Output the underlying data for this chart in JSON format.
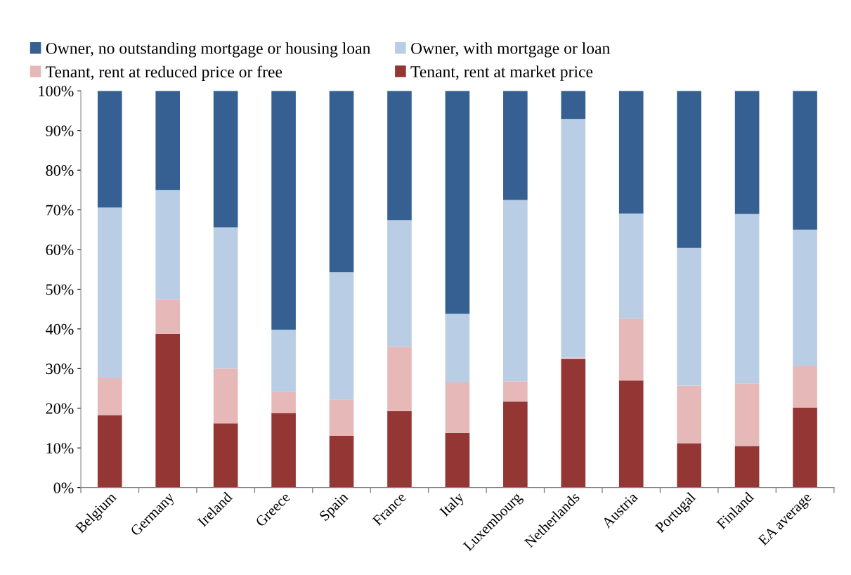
{
  "chart_data": {
    "type": "bar",
    "stacked": true,
    "categories": [
      "Belgium",
      "Germany",
      "Ireland",
      "Greece",
      "Spain",
      "France",
      "Italy",
      "Luxembourg",
      "Netherlands",
      "Austria",
      "Portugal",
      "Finland",
      "EA average"
    ],
    "series": [
      {
        "name": "Tenant, rent at market price",
        "color": "#943634",
        "values": [
          18.3,
          38.8,
          16.2,
          18.8,
          13.1,
          19.3,
          13.8,
          21.7,
          32.4,
          27.0,
          11.2,
          10.5,
          20.2
        ]
      },
      {
        "name": "Tenant, rent at reduced price or free",
        "color": "#e6b8b7",
        "values": [
          9.3,
          8.5,
          13.8,
          5.3,
          9.1,
          16.2,
          12.7,
          5.1,
          0.4,
          15.6,
          14.5,
          15.8,
          10.4
        ]
      },
      {
        "name": "Owner, with mortgage or loan",
        "color": "#b9cde5",
        "values": [
          43.0,
          27.7,
          35.6,
          15.7,
          32.1,
          31.9,
          17.3,
          45.7,
          60.1,
          26.5,
          34.7,
          42.7,
          34.4
        ]
      },
      {
        "name": "Owner, no outstanding mortgage or housing loan",
        "color": "#366092",
        "values": [
          29.4,
          25.0,
          34.4,
          60.2,
          45.7,
          32.6,
          56.2,
          27.5,
          7.1,
          30.9,
          39.6,
          31.0,
          35.0
        ]
      }
    ],
    "ylim": [
      0,
      100
    ],
    "yticks": [
      {
        "value": 0,
        "label": "0%"
      },
      {
        "value": 10,
        "label": "10%"
      },
      {
        "value": 20,
        "label": "20%"
      },
      {
        "value": 30,
        "label": "30%"
      },
      {
        "value": 40,
        "label": "40%"
      },
      {
        "value": 50,
        "label": "50%"
      },
      {
        "value": 60,
        "label": "60%"
      },
      {
        "value": 70,
        "label": "70%"
      },
      {
        "value": 80,
        "label": "80%"
      },
      {
        "value": 90,
        "label": "90%"
      },
      {
        "value": 100,
        "label": "100%"
      }
    ],
    "legend": "top",
    "grid": false
  }
}
